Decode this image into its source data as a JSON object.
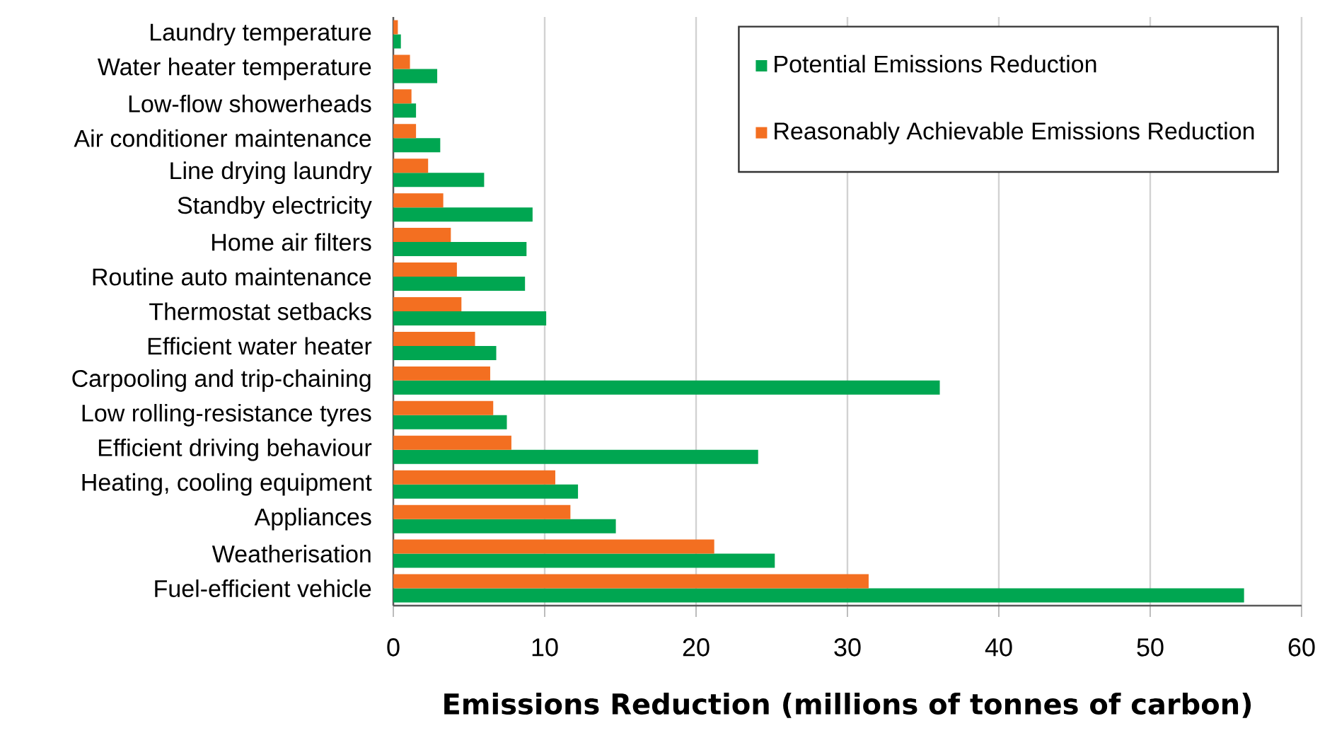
{
  "chart_data": {
    "type": "bar",
    "orientation": "horizontal",
    "xlabel": "Emissions Reduction (millions of tonnes of carbon)",
    "categories": [
      "Laundry temperature",
      "Water heater temperature",
      "Low-flow showerheads",
      "Air conditioner maintenance",
      "Line drying laundry",
      "Standby electricity",
      "Home air filters",
      "Routine auto maintenance",
      "Thermostat setbacks",
      "Efficient water heater",
      "Carpooling and trip-chaining",
      "Low rolling-resistance tyres",
      "Efficient driving behaviour",
      "Heating, cooling equipment",
      "Appliances",
      "Weatherisation",
      "Fuel-efficient vehicle"
    ],
    "series": [
      {
        "name": "Potential Emissions Reduction",
        "color": "#00a651",
        "values": [
          0.5,
          2.9,
          1.5,
          3.1,
          6.0,
          9.2,
          8.8,
          8.7,
          10.1,
          6.8,
          36.1,
          7.5,
          24.1,
          12.2,
          14.7,
          25.2,
          56.2
        ]
      },
      {
        "name": "Reasonably Achievable Emissions Reduction",
        "color": "#f36f21",
        "values": [
          0.3,
          1.1,
          1.2,
          1.5,
          2.3,
          3.3,
          3.8,
          4.2,
          4.5,
          5.4,
          6.4,
          6.6,
          7.8,
          10.7,
          11.7,
          21.2,
          31.4
        ]
      }
    ],
    "xlim": [
      0,
      60
    ],
    "xticks": [
      0,
      10,
      20,
      30,
      40,
      50,
      60
    ],
    "grid": "x",
    "legend": "top right"
  }
}
